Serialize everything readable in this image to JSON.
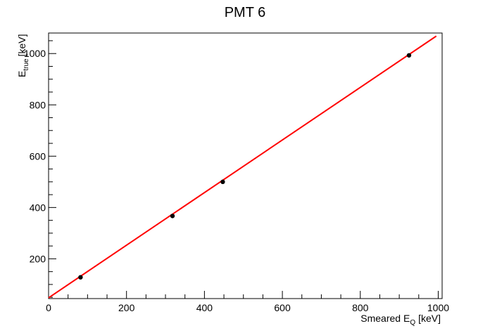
{
  "chart_data": {
    "type": "scatter",
    "title": "PMT 6",
    "xlabel": {
      "main": "Smeared E",
      "sub": "Q",
      "unit": "[keV]"
    },
    "ylabel": {
      "main": "E",
      "sub": "true",
      "unit": "[keV]"
    },
    "xlim": [
      0,
      1010
    ],
    "ylim": [
      45,
      1080
    ],
    "x_ticks": [
      0,
      200,
      400,
      600,
      800,
      1000
    ],
    "y_ticks": [
      200,
      400,
      600,
      800,
      1000
    ],
    "grid": false,
    "series": [
      {
        "type": "scatter",
        "color": "#000000",
        "x": [
          82,
          318,
          447,
          925
        ],
        "y": [
          128,
          367,
          500,
          993
        ]
      },
      {
        "type": "line",
        "color": "#ff0000",
        "x": [
          0,
          995
        ],
        "y": [
          48,
          1068
        ]
      }
    ]
  }
}
